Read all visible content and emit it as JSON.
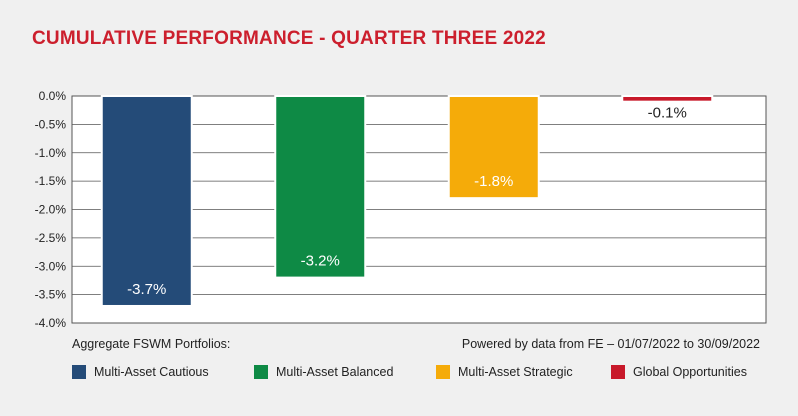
{
  "chart_data": {
    "type": "bar",
    "title": "CUMULATIVE PERFORMANCE - QUARTER THREE 2022",
    "categories": [
      "Multi-Asset Cautious",
      "Multi-Asset Balanced",
      "Multi-Asset Strategic",
      "Global Opportunities"
    ],
    "values": [
      -3.7,
      -3.2,
      -1.8,
      -0.1
    ],
    "data_labels": [
      "-3.7%",
      "-3.2%",
      "-1.8%",
      "-0.1%"
    ],
    "colors": [
      "#244b78",
      "#0e8a45",
      "#f5ab09",
      "#c8192a"
    ],
    "ylim": [
      -4.0,
      0.0
    ],
    "yticks": [
      "0.0%",
      "-0.5%",
      "-1.0%",
      "-1.5%",
      "-2.0%",
      "-2.5%",
      "-3.0%",
      "-3.5%",
      "-4.0%"
    ],
    "grid": true,
    "legend_position": "bottom"
  },
  "footer": {
    "left": "Aggregate FSWM Portfolios:",
    "right": "Powered by data from FE – 01/07/2022 to 30/09/2022"
  },
  "legend": [
    {
      "label": "Multi-Asset Cautious",
      "color": "#244b78"
    },
    {
      "label": "Multi-Asset Balanced",
      "color": "#0e8a45"
    },
    {
      "label": "Multi-Asset Strategic",
      "color": "#f5ab09"
    },
    {
      "label": "Global Opportunities",
      "color": "#c8192a"
    }
  ]
}
